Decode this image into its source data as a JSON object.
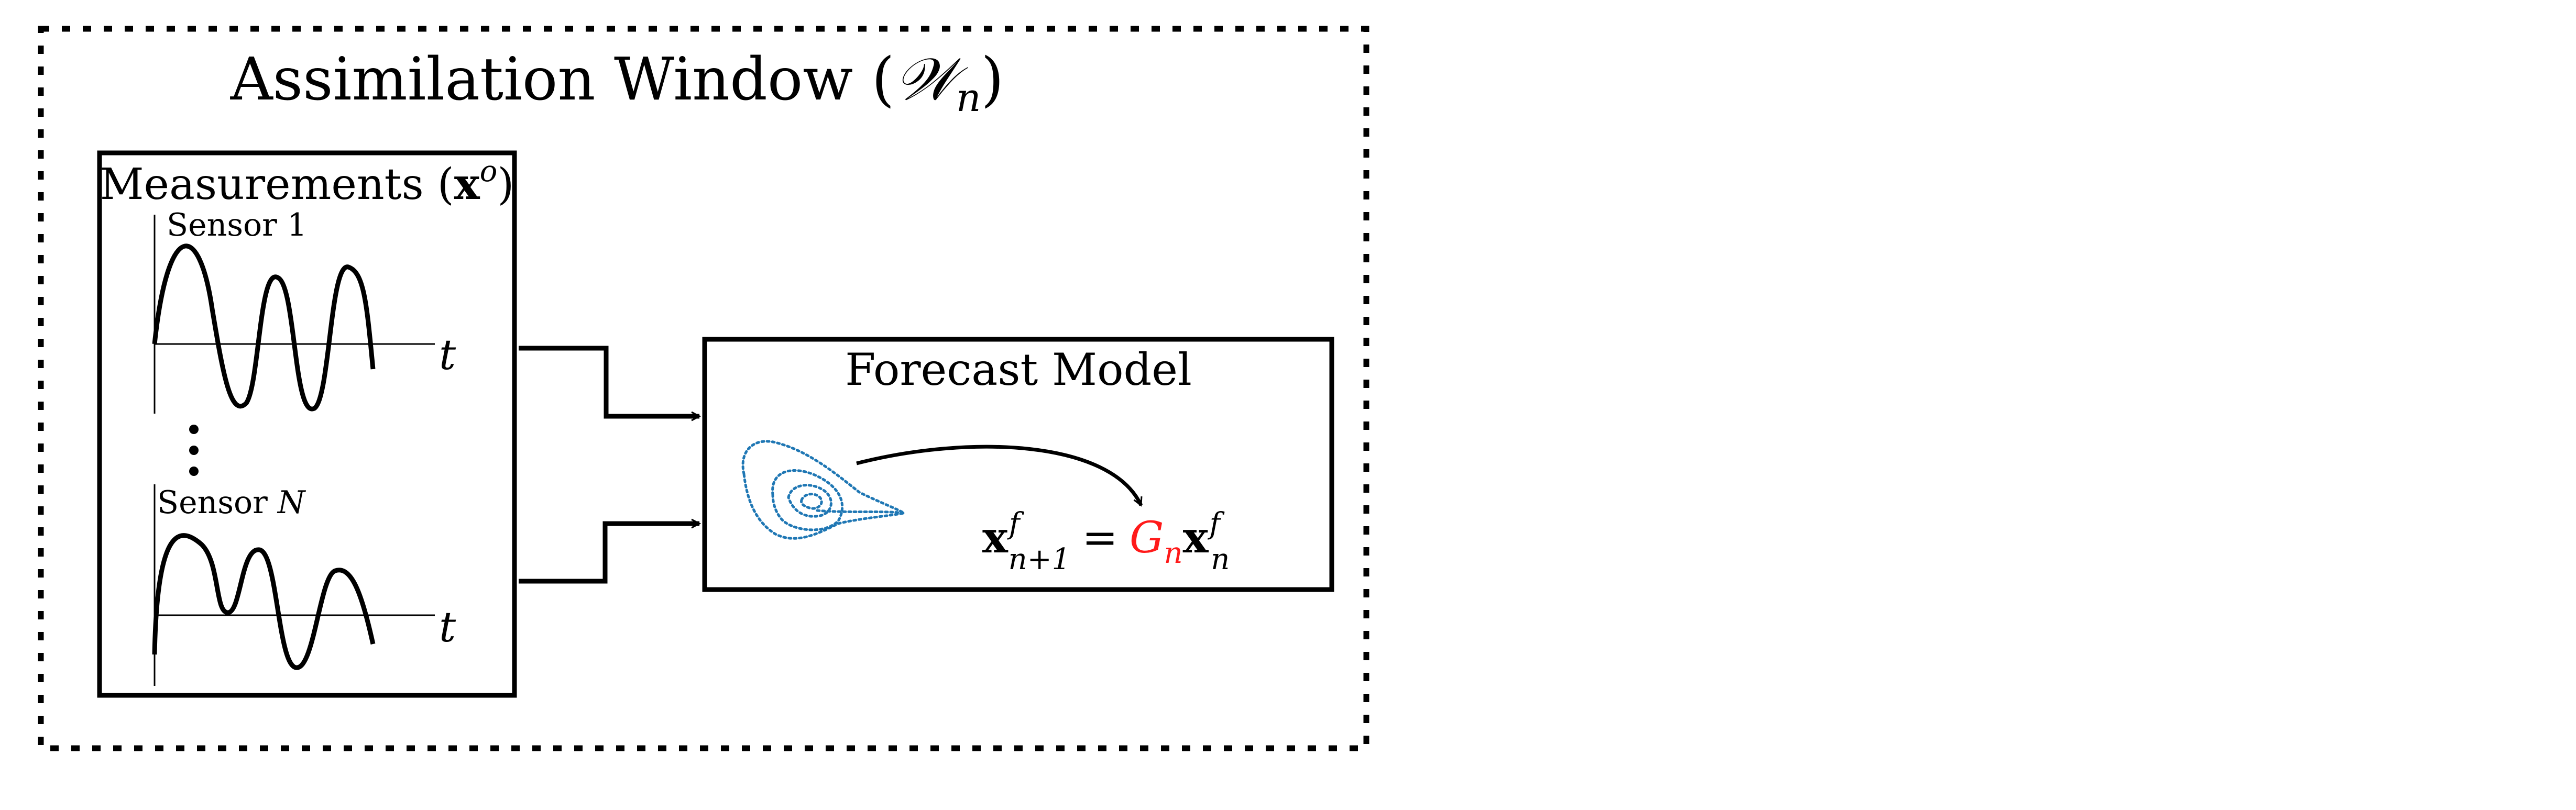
{
  "window_box": {
    "title_text": "Assimilation Window (",
    "title_symbol": "𝒲",
    "title_subscript": "n",
    "title_close": ")"
  },
  "measurements_box": {
    "title_text": "Measurements (",
    "title_vector": "x",
    "title_superscript": "o",
    "title_close": ")",
    "sensor_top_label": "Sensor 1",
    "sensor_bottom_label_prefix": "Sensor ",
    "sensor_bottom_label_var": "N",
    "time_axis_label_top": "t",
    "time_axis_label_bottom": "t",
    "ellipsis": "⋮"
  },
  "forecast_box": {
    "title": "Forecast Model",
    "eq_lhs_vector": "x",
    "eq_lhs_sup": "f",
    "eq_lhs_sub": "n+1",
    "eq_equals": "=",
    "eq_operator": "G",
    "eq_operator_sub": "n",
    "eq_rhs_vector": "x",
    "eq_rhs_sup": "f",
    "eq_rhs_sub": "n"
  },
  "colors": {
    "operator_color": "#ff1a1a",
    "attractor_color": "#1f77b4",
    "line_color": "#000000"
  }
}
